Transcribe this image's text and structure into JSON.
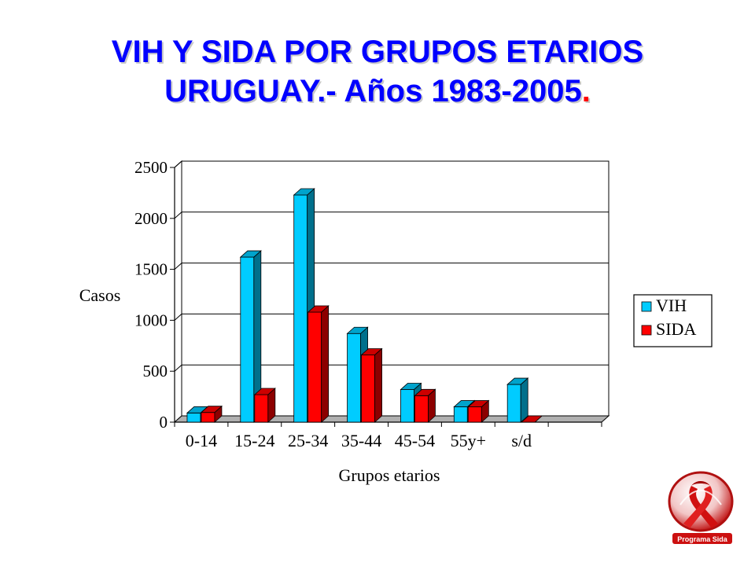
{
  "header": {
    "title_line1": "VIH Y SIDA POR GRUPOS ETARIOS",
    "title_line2_main": "URUGUAY.- Años 1983-2005",
    "title_line2_dot": "."
  },
  "chart_data": {
    "type": "bar",
    "categories": [
      "0-14",
      "15-24",
      "25-34",
      "35-44",
      "45-54",
      "55y+",
      "s/d"
    ],
    "series": [
      {
        "name": "VIH",
        "values": [
          90,
          1620,
          2230,
          870,
          320,
          150,
          370
        ],
        "color": "#00ccff"
      },
      {
        "name": "SIDA",
        "values": [
          95,
          270,
          1080,
          660,
          260,
          150,
          0
        ],
        "color": "#ff0000"
      }
    ],
    "ylabel": "Casos",
    "xlabel": "Grupos etarios",
    "ylim": [
      0,
      2500
    ],
    "yticks": [
      0,
      500,
      1000,
      1500,
      2000,
      2500
    ],
    "grid": true,
    "legend": "right",
    "three_d": true
  },
  "logo": {
    "icon": "red-ribbon-icon",
    "text": "Programa Sida"
  }
}
